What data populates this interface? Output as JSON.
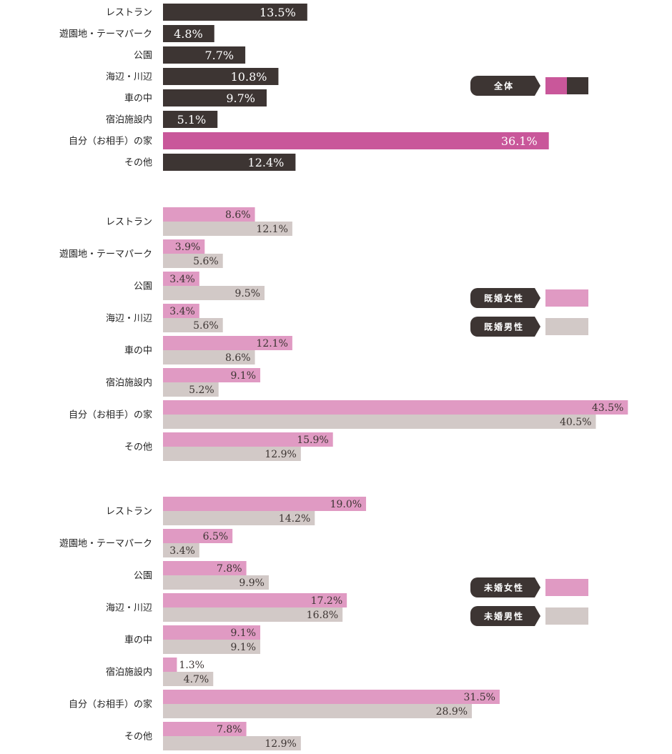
{
  "colors": {
    "dark": "#3d3533",
    "magenta": "#c9579a",
    "pink": "#e09ac3",
    "gray": "#d2c9c7"
  },
  "chart_data": [
    {
      "type": "bar",
      "orientation": "horizontal",
      "categories": [
        "レストラン",
        "遊園地・テーマパーク",
        "公園",
        "海辺・川辺",
        "車の中",
        "宿泊施設内",
        "自分（お相手）の家",
        "その他"
      ],
      "series": [
        {
          "name": "全体",
          "values": [
            13.5,
            4.8,
            7.7,
            10.8,
            9.7,
            5.1,
            36.1,
            12.4
          ]
        }
      ],
      "value_labels": [
        "13.5%",
        "4.8%",
        "7.7%",
        "10.8%",
        "9.7%",
        "5.1%",
        "36.1%",
        "12.4%"
      ],
      "highlight_index": 6,
      "legend": {
        "label": "全体",
        "position": "right"
      }
    },
    {
      "type": "bar",
      "orientation": "horizontal",
      "categories": [
        "レストラン",
        "遊園地・テーマパーク",
        "公園",
        "海辺・川辺",
        "車の中",
        "宿泊施設内",
        "自分（お相手）の家",
        "その他"
      ],
      "series": [
        {
          "name": "既婚女性",
          "values": [
            8.6,
            3.9,
            3.4,
            3.4,
            12.1,
            9.1,
            43.5,
            15.9
          ],
          "labels": [
            "8.6%",
            "3.9%",
            "3.4%",
            "3.4%",
            "12.1%",
            "9.1%",
            "43.5%",
            "15.9%"
          ]
        },
        {
          "name": "既婚男性",
          "values": [
            12.1,
            5.6,
            9.5,
            5.6,
            8.6,
            5.2,
            40.5,
            12.9
          ],
          "labels": [
            "12.1%",
            "5.6%",
            "9.5%",
            "5.6%",
            "8.6%",
            "5.2%",
            "40.5%",
            "12.9%"
          ]
        }
      ],
      "legend": {
        "position": "right"
      }
    },
    {
      "type": "bar",
      "orientation": "horizontal",
      "categories": [
        "レストラン",
        "遊園地・テーマパーク",
        "公園",
        "海辺・川辺",
        "車の中",
        "宿泊施設内",
        "自分（お相手）の家",
        "その他"
      ],
      "series": [
        {
          "name": "未婚女性",
          "values": [
            19.0,
            6.5,
            7.8,
            17.2,
            9.1,
            1.3,
            31.5,
            7.8
          ],
          "labels": [
            "19.0%",
            "6.5%",
            "7.8%",
            "17.2%",
            "9.1%",
            "1.3%",
            "31.5%",
            "7.8%"
          ]
        },
        {
          "name": "未婚男性",
          "values": [
            14.2,
            3.4,
            9.9,
            16.8,
            9.1,
            4.7,
            28.9,
            12.9
          ],
          "labels": [
            "14.2%",
            "3.4%",
            "9.9%",
            "16.8%",
            "9.1%",
            "4.7%",
            "28.9%",
            "12.9%"
          ]
        }
      ],
      "legend": {
        "position": "right"
      }
    }
  ]
}
